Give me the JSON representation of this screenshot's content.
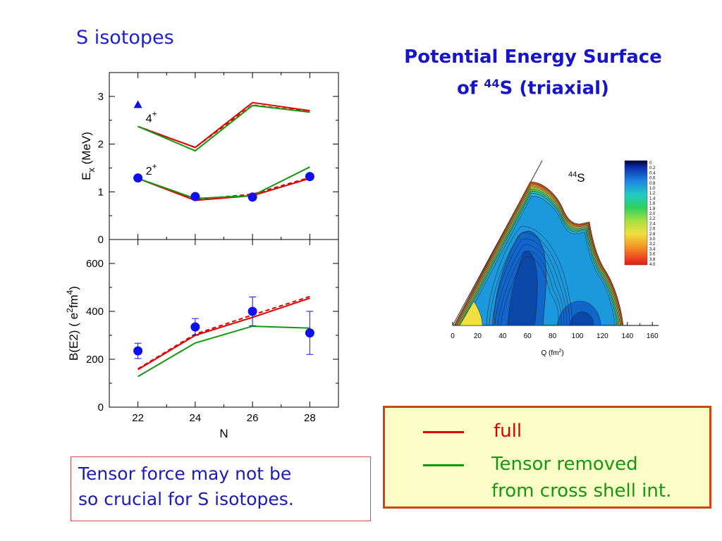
{
  "heading": "S isotopes",
  "pes_title": {
    "line1": "Potential Energy Surface",
    "line2_pre": "of ",
    "line2_sup": "44",
    "line2_post": "S  (triaxial)"
  },
  "colors": {
    "full": "#e00000",
    "tensor_removed": "#119911",
    "exp": "#1010ee",
    "heading": "#1f1fcc"
  },
  "chart_data": [
    {
      "type": "line",
      "panel": "top",
      "ylabel_main": "E",
      "ylabel_sub": "x",
      "ylabel_rest": " (MeV)",
      "x": [
        22,
        24,
        26,
        28
      ],
      "xlim": [
        21,
        29
      ],
      "ylim": [
        0,
        3.5
      ],
      "yticks": [
        0,
        1,
        2,
        3
      ],
      "annotations": [
        {
          "text": "4",
          "sup": "+",
          "x": 22.2,
          "y": 2.55
        },
        {
          "text": "2",
          "sup": "+",
          "x": 22.2,
          "y": 1.45
        }
      ],
      "series": [
        {
          "role": "full",
          "values_4plus": [
            2.37,
            1.93,
            2.87,
            2.7
          ],
          "values_2plus": [
            1.28,
            0.82,
            0.92,
            1.28
          ]
        },
        {
          "role": "full-dashed",
          "values_4plus": [
            2.37,
            1.93,
            2.82,
            2.68
          ],
          "values_2plus": [
            1.28,
            0.84,
            0.95,
            1.3
          ]
        },
        {
          "role": "tensor_removed",
          "values_4plus": [
            2.37,
            1.86,
            2.81,
            2.67
          ],
          "values_2plus": [
            1.28,
            0.86,
            0.92,
            1.52
          ]
        }
      ],
      "exp_4plus": [
        {
          "x": 22,
          "y": 2.83
        }
      ],
      "exp_2plus": [
        {
          "x": 22,
          "y": 1.29
        },
        {
          "x": 24,
          "y": 0.9
        },
        {
          "x": 26,
          "y": 0.89
        },
        {
          "x": 28,
          "y": 1.32
        }
      ]
    },
    {
      "type": "line",
      "panel": "bottom",
      "xlabel": "N",
      "ylabel": "B(E2) ( e²fm⁴)",
      "x": [
        22,
        24,
        26,
        28
      ],
      "xticks": [
        22,
        24,
        26,
        28
      ],
      "xlim": [
        21,
        29
      ],
      "ylim": [
        0,
        700
      ],
      "yticks": [
        0,
        200,
        400,
        600
      ],
      "series": [
        {
          "role": "full",
          "values": [
            157,
            300,
            375,
            455
          ]
        },
        {
          "role": "full-dashed",
          "values": [
            160,
            305,
            385,
            462
          ]
        },
        {
          "role": "tensor_removed",
          "values": [
            128,
            268,
            338,
            330
          ]
        }
      ],
      "exp": [
        {
          "x": 22,
          "y": 235,
          "err": 32
        },
        {
          "x": 24,
          "y": 335,
          "err": 35
        },
        {
          "x": 26,
          "y": 400,
          "err": 60
        },
        {
          "x": 28,
          "y": 310,
          "err": 90
        }
      ]
    },
    {
      "type": "heatmap",
      "panel": "pes",
      "label_sup": "44",
      "label_main": "S",
      "xlabel": "Q (fm²)",
      "xticks": [
        0,
        20,
        40,
        60,
        80,
        100,
        120,
        140,
        160
      ],
      "xlim": [
        0,
        165
      ],
      "colorbar_ticks": [
        "0",
        "0.2",
        "0.4",
        "0.6",
        "0.8",
        "1.0",
        "1.2",
        "1.4",
        "1.6",
        "1.8",
        "2.0",
        "2.2",
        "2.4",
        "2.6",
        "2.8",
        "3.0",
        "3.2",
        "3.4",
        "3.6",
        "3.8",
        "4.0"
      ]
    }
  ],
  "note": {
    "line1": "Tensor force may not be",
    "line2": "so crucial for S isotopes."
  },
  "legend": {
    "full_label": "full",
    "tensor_label_1": "Tensor removed",
    "tensor_label_2": "from cross shell int."
  }
}
